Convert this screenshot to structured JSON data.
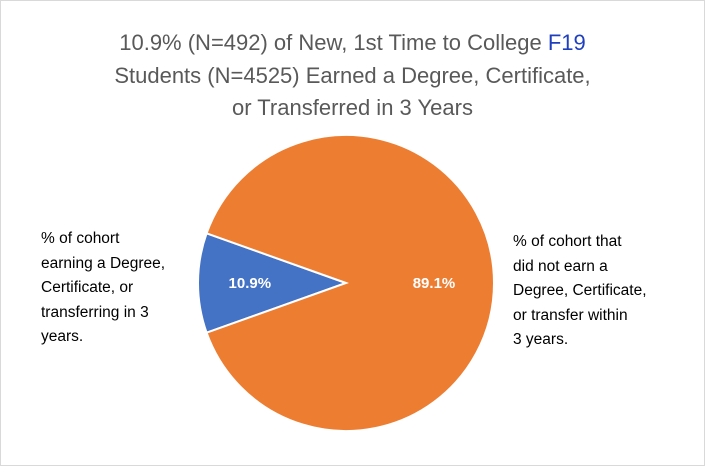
{
  "chart_data": {
    "type": "pie",
    "title": {
      "line1_prefix": "10.9% (N=492) of New, 1st Time to College ",
      "line1_highlight": "F19",
      "line2": "Students (N=4525) Earned a Degree, Certificate,",
      "line3": "or Transferred in 3 Years"
    },
    "slices": [
      {
        "name": "earned",
        "value": 10.9,
        "data_label": "10.9%",
        "color": "#4472c4",
        "category_label": [
          "% of cohort",
          "earning a Degree,",
          "Certificate, or",
          "transferring in 3",
          "years."
        ]
      },
      {
        "name": "not-earned",
        "value": 89.1,
        "data_label": "89.1%",
        "color": "#ed7d31",
        "category_label": [
          "% of cohort that",
          "did not earn a",
          "Degree, Certificate,",
          "or transfer within",
          "3 years."
        ]
      }
    ],
    "highlight_color": "#1f3fbf"
  }
}
